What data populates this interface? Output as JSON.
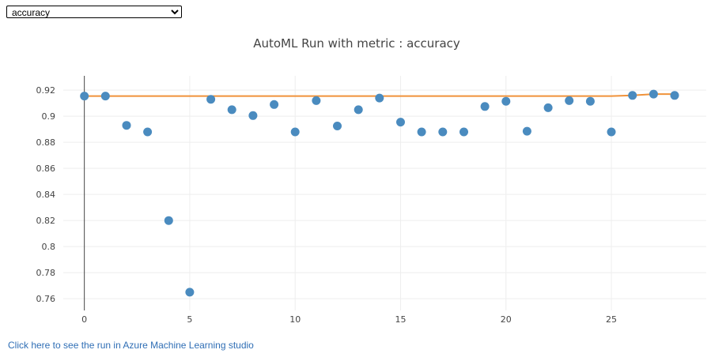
{
  "controls": {
    "metric_select": {
      "selected": "accuracy",
      "options": [
        "accuracy"
      ]
    },
    "studio_link_text": "Click here to see the run in Azure Machine Learning studio"
  },
  "colors": {
    "points": "#4a8bbf",
    "best_line": "#f0923a",
    "link": "#2f6eb5"
  },
  "chart_data": {
    "type": "scatter",
    "title": "AutoML Run with metric : accuracy",
    "xlabel": "",
    "ylabel": "",
    "xlim": [
      -1,
      29.5
    ],
    "ylim": [
      0.751,
      0.931
    ],
    "x_ticks": [
      0,
      5,
      10,
      15,
      20,
      25
    ],
    "y_ticks": [
      0.76,
      0.78,
      0.8,
      0.82,
      0.84,
      0.86,
      0.88,
      0.9,
      0.92
    ],
    "y_tick_labels": [
      "0.76",
      "0.78",
      "0.8",
      "0.82",
      "0.84",
      "0.86",
      "0.88",
      "0.9",
      "0.92"
    ],
    "grid": true,
    "legend": "none",
    "series": [
      {
        "mode": "markers",
        "x": [
          0,
          1,
          2,
          3,
          4,
          5,
          6,
          7,
          8,
          9,
          10,
          11,
          12,
          13,
          14,
          15,
          16,
          17,
          18,
          19,
          20,
          21,
          22,
          23,
          24,
          25,
          26,
          27,
          28
        ],
        "y": [
          0.9155,
          0.9155,
          0.893,
          0.888,
          0.82,
          0.765,
          0.913,
          0.905,
          0.9005,
          0.909,
          0.888,
          0.912,
          0.8925,
          0.905,
          0.914,
          0.8955,
          0.888,
          0.888,
          0.888,
          0.9075,
          0.9115,
          0.8885,
          0.9065,
          0.912,
          0.9115,
          0.888,
          0.916,
          0.917,
          0.916
        ]
      },
      {
        "mode": "line",
        "x": [
          0,
          1,
          2,
          3,
          4,
          5,
          6,
          7,
          8,
          9,
          10,
          11,
          12,
          13,
          14,
          15,
          16,
          17,
          18,
          19,
          20,
          21,
          22,
          23,
          24,
          25,
          26,
          27,
          28
        ],
        "y": [
          0.9155,
          0.9155,
          0.9155,
          0.9155,
          0.9155,
          0.9155,
          0.9155,
          0.9155,
          0.9155,
          0.9155,
          0.9155,
          0.9155,
          0.9155,
          0.9155,
          0.9155,
          0.9155,
          0.9155,
          0.9155,
          0.9155,
          0.9155,
          0.9155,
          0.9155,
          0.9155,
          0.9155,
          0.9155,
          0.9155,
          0.916,
          0.917,
          0.917
        ]
      }
    ]
  }
}
